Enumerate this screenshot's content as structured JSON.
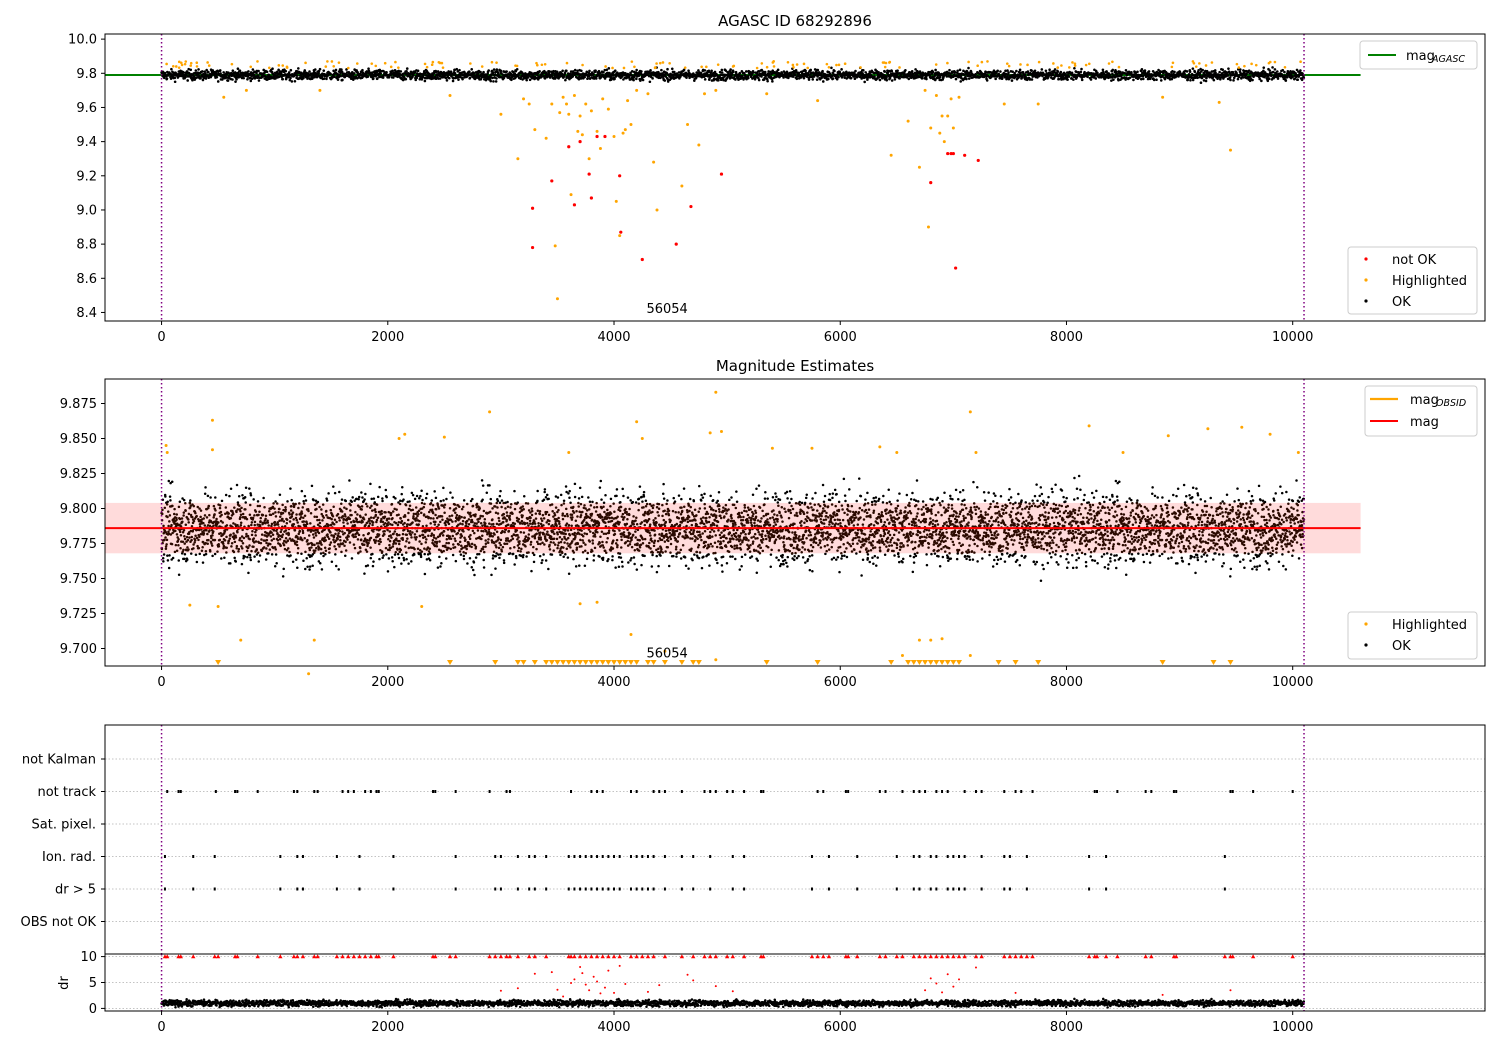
{
  "chart_data": [
    {
      "type": "scatter",
      "title": "AGASC ID 68292896",
      "xlim": [
        -500,
        11700
      ],
      "ylim": [
        8.35,
        10.03
      ],
      "xticks": [
        0,
        2000,
        4000,
        6000,
        8000,
        10000
      ],
      "yticks": [
        8.4,
        8.6,
        8.8,
        9.0,
        9.2,
        9.4,
        9.6,
        9.8,
        10.0
      ],
      "ytick_labels": [
        "8.4",
        "8.6",
        "8.8",
        "9.0",
        "9.2",
        "9.4",
        "9.6",
        "9.8",
        "10.0"
      ],
      "vlines": [
        0,
        10100
      ],
      "annotation": {
        "text": "56054",
        "x": 5000,
        "y": 8.41
      },
      "mag_line": {
        "y": 9.79,
        "x_range": [
          -500,
          10600
        ]
      },
      "ok_band": {
        "center": 9.79,
        "spread": 0.03
      },
      "legend_top": [
        {
          "label": "mag",
          "sub": "AGASC",
          "color": "#008000",
          "kind": "line"
        }
      ],
      "legend_bottom": [
        {
          "label": "not OK",
          "color": "#ff0000",
          "kind": "dot"
        },
        {
          "label": "Highlighted",
          "color": "#ffa500",
          "kind": "dot"
        },
        {
          "label": "OK",
          "color": "#000000",
          "kind": "dot"
        }
      ],
      "highlighted_points": [
        [
          3000,
          9.56
        ],
        [
          3150,
          9.3
        ],
        [
          3200,
          9.65
        ],
        [
          3250,
          9.62
        ],
        [
          3300,
          9.47
        ],
        [
          3400,
          9.42
        ],
        [
          3450,
          9.62
        ],
        [
          3480,
          8.79
        ],
        [
          3500,
          8.48
        ],
        [
          3520,
          9.57
        ],
        [
          3550,
          9.66
        ],
        [
          3580,
          9.62
        ],
        [
          3600,
          9.56
        ],
        [
          3620,
          9.09
        ],
        [
          3650,
          9.67
        ],
        [
          3680,
          9.46
        ],
        [
          3700,
          9.55
        ],
        [
          3720,
          9.44
        ],
        [
          3750,
          9.62
        ],
        [
          3780,
          9.3
        ],
        [
          3800,
          9.58
        ],
        [
          3850,
          9.46
        ],
        [
          3880,
          9.36
        ],
        [
          3900,
          9.65
        ],
        [
          3950,
          9.59
        ],
        [
          4000,
          9.43
        ],
        [
          4020,
          9.05
        ],
        [
          4050,
          8.85
        ],
        [
          4080,
          9.45
        ],
        [
          4100,
          9.47
        ],
        [
          4120,
          9.64
        ],
        [
          4150,
          9.5
        ],
        [
          4200,
          9.7
        ],
        [
          4300,
          9.68
        ],
        [
          4350,
          9.28
        ],
        [
          4380,
          9.0
        ],
        [
          4600,
          9.14
        ],
        [
          4650,
          9.5
        ],
        [
          4750,
          9.38
        ],
        [
          4800,
          9.68
        ],
        [
          5350,
          9.68
        ],
        [
          5800,
          9.64
        ],
        [
          6450,
          9.32
        ],
        [
          6600,
          9.52
        ],
        [
          6700,
          9.25
        ],
        [
          6750,
          9.7
        ],
        [
          6780,
          8.9
        ],
        [
          6800,
          9.48
        ],
        [
          6850,
          9.67
        ],
        [
          6880,
          9.45
        ],
        [
          6900,
          9.55
        ],
        [
          6920,
          9.4
        ],
        [
          6950,
          9.55
        ],
        [
          6980,
          9.65
        ],
        [
          7000,
          9.48
        ],
        [
          7050,
          9.66
        ],
        [
          7450,
          9.62
        ],
        [
          7750,
          9.62
        ],
        [
          8850,
          9.66
        ],
        [
          9350,
          9.63
        ],
        [
          9450,
          9.35
        ],
        [
          2550,
          9.67
        ],
        [
          1400,
          9.7
        ],
        [
          550,
          9.66
        ],
        [
          750,
          9.7
        ],
        [
          4900,
          9.7
        ]
      ],
      "notok_points": [
        [
          3280,
          9.01
        ],
        [
          3280,
          8.78
        ],
        [
          3450,
          9.17
        ],
        [
          3600,
          9.37
        ],
        [
          3650,
          9.03
        ],
        [
          3700,
          9.4
        ],
        [
          3780,
          9.21
        ],
        [
          3800,
          9.07
        ],
        [
          3850,
          9.43
        ],
        [
          3920,
          9.43
        ],
        [
          4050,
          9.2
        ],
        [
          4060,
          8.87
        ],
        [
          4250,
          8.71
        ],
        [
          4550,
          8.8
        ],
        [
          4680,
          9.02
        ],
        [
          4950,
          9.21
        ],
        [
          6950,
          9.33
        ],
        [
          6980,
          9.33
        ],
        [
          7000,
          9.33
        ],
        [
          6800,
          9.16
        ],
        [
          7020,
          8.66
        ],
        [
          7100,
          9.32
        ],
        [
          7220,
          9.29
        ]
      ]
    },
    {
      "type": "scatter",
      "title": "Magnitude Estimates",
      "xlim": [
        -500,
        11700
      ],
      "ylim": [
        9.6875,
        9.8925
      ],
      "xticks": [
        0,
        2000,
        4000,
        6000,
        8000,
        10000
      ],
      "yticks": [
        9.7,
        9.725,
        9.75,
        9.775,
        9.8,
        9.825,
        9.85,
        9.875
      ],
      "ytick_labels": [
        "9.700",
        "9.725",
        "9.750",
        "9.775",
        "9.800",
        "9.825",
        "9.850",
        "9.875"
      ],
      "vlines": [
        0,
        10100
      ],
      "annotation": {
        "text": "56054",
        "x": 5000,
        "y": 9.695
      },
      "mag_line": {
        "y": 9.786,
        "x_range": [
          -500,
          10600
        ]
      },
      "obsid_band": {
        "low": 9.768,
        "high": 9.804,
        "x_range": [
          -500,
          10600
        ]
      },
      "ok_band": {
        "center": 9.786,
        "spread": 0.025
      },
      "legend_top": [
        {
          "label": "mag",
          "sub": "OBSID",
          "color": "#ffa500",
          "kind": "line"
        },
        {
          "label": "mag",
          "sub": "",
          "color": "#ff0000",
          "kind": "line"
        }
      ],
      "legend_bottom": [
        {
          "label": "Highlighted",
          "color": "#ffa500",
          "kind": "dot"
        },
        {
          "label": "OK",
          "color": "#000000",
          "kind": "dot"
        }
      ],
      "highlighted_points": [
        [
          40,
          9.845
        ],
        [
          50,
          9.84
        ],
        [
          450,
          9.863
        ],
        [
          450,
          9.842
        ],
        [
          500,
          9.73
        ],
        [
          700,
          9.706
        ],
        [
          1350,
          9.706
        ],
        [
          1300,
          9.682
        ],
        [
          250,
          9.731
        ],
        [
          2100,
          9.85
        ],
        [
          2150,
          9.853
        ],
        [
          2300,
          9.73
        ],
        [
          2500,
          9.851
        ],
        [
          2900,
          9.869
        ],
        [
          3600,
          9.84
        ],
        [
          3700,
          9.732
        ],
        [
          3850,
          9.733
        ],
        [
          4200,
          9.862
        ],
        [
          4250,
          9.85
        ],
        [
          4150,
          9.71
        ],
        [
          4450,
          9.698
        ],
        [
          4900,
          9.883
        ],
        [
          4950,
          9.855
        ],
        [
          4850,
          9.854
        ],
        [
          4900,
          9.692
        ],
        [
          5400,
          9.843
        ],
        [
          5750,
          9.843
        ],
        [
          6350,
          9.844
        ],
        [
          6500,
          9.84
        ],
        [
          6550,
          9.695
        ],
        [
          6700,
          9.706
        ],
        [
          6800,
          9.706
        ],
        [
          6900,
          9.707
        ],
        [
          7150,
          9.695
        ],
        [
          7150,
          9.869
        ],
        [
          7200,
          9.84
        ],
        [
          8200,
          9.859
        ],
        [
          8500,
          9.84
        ],
        [
          8900,
          9.852
        ],
        [
          9250,
          9.857
        ],
        [
          9550,
          9.858
        ],
        [
          9800,
          9.853
        ],
        [
          10050,
          9.84
        ]
      ],
      "triangle_x": [
        500,
        2550,
        2950,
        3150,
        3200,
        3300,
        3400,
        3450,
        3500,
        3550,
        3600,
        3650,
        3700,
        3750,
        3800,
        3850,
        3900,
        3950,
        4000,
        4050,
        4100,
        4150,
        4200,
        4300,
        4350,
        4450,
        4600,
        4700,
        4750,
        5350,
        5800,
        6450,
        6600,
        6650,
        6700,
        6750,
        6800,
        6850,
        6900,
        6950,
        7000,
        7050,
        7400,
        7550,
        7750,
        8850,
        9300,
        9450
      ]
    },
    {
      "type": "scatter",
      "title": "",
      "xlim": [
        -500,
        11700
      ],
      "categories": [
        "not Kalman",
        "not track",
        "Sat. pixel.",
        "Ion. rad.",
        "dr > 5",
        "OBS not OK"
      ],
      "vlines": [
        0,
        10100
      ],
      "events": {
        "not track": [
          50,
          150,
          170,
          480,
          650,
          670,
          850,
          1170,
          1200,
          1350,
          1380,
          1600,
          1650,
          1700,
          1800,
          1850,
          1900,
          1920,
          2400,
          2420,
          2600,
          2900,
          3050,
          3080,
          3620,
          3800,
          3850,
          3900,
          4150,
          4200,
          4350,
          4400,
          4450,
          4600,
          4800,
          4850,
          4900,
          5000,
          5050,
          5150,
          5300,
          5320,
          5800,
          5850,
          6050,
          6070,
          6350,
          6400,
          6550,
          6650,
          6700,
          6750,
          6850,
          6900,
          6950,
          7100,
          7200,
          7250,
          7450,
          7550,
          7600,
          7700,
          8250,
          8270,
          8450,
          8700,
          8750,
          8950,
          8970,
          9450,
          9470,
          9650,
          10000
        ],
        "Ion. rad.": [
          30,
          280,
          470,
          1050,
          1200,
          1250,
          1550,
          1750,
          2050,
          2600,
          2950,
          3000,
          3150,
          3250,
          3300,
          3400,
          3600,
          3650,
          3700,
          3750,
          3800,
          3850,
          3900,
          3950,
          4000,
          4050,
          4150,
          4200,
          4250,
          4300,
          4350,
          4450,
          4600,
          4700,
          4850,
          5050,
          5150,
          5750,
          5900,
          6150,
          6500,
          6650,
          6700,
          6800,
          6850,
          6950,
          7000,
          7050,
          7100,
          7250,
          7450,
          7500,
          7650,
          8200,
          8350,
          9400
        ],
        "dr > 5": [
          30,
          280,
          470,
          1050,
          1200,
          1250,
          1550,
          1750,
          2050,
          2600,
          2950,
          3000,
          3150,
          3250,
          3300,
          3400,
          3600,
          3650,
          3700,
          3750,
          3800,
          3850,
          3900,
          3950,
          4000,
          4050,
          4150,
          4200,
          4250,
          4300,
          4350,
          4450,
          4600,
          4700,
          4850,
          5050,
          5150,
          5750,
          5900,
          6150,
          6500,
          6650,
          6700,
          6800,
          6850,
          6950,
          7000,
          7050,
          7100,
          7250,
          7450,
          7500,
          7650,
          8200,
          8350,
          9400
        ]
      }
    },
    {
      "type": "scatter",
      "title": "",
      "xlim": [
        -500,
        11700
      ],
      "ylim": [
        -0.5,
        10.5
      ],
      "ylabel": "dr",
      "xticks": [
        0,
        2000,
        4000,
        6000,
        8000,
        10000
      ],
      "yticks": [
        0,
        5,
        10
      ],
      "ytick_labels": [
        "0",
        "5",
        "10"
      ],
      "vlines": [
        0,
        10100
      ],
      "ok_band": {
        "center": 1.0,
        "spread": 0.6
      },
      "capped_x": [
        30,
        50,
        150,
        170,
        280,
        470,
        500,
        650,
        670,
        850,
        1050,
        1170,
        1200,
        1250,
        1350,
        1380,
        1550,
        1600,
        1650,
        1700,
        1750,
        1800,
        1850,
        1900,
        1920,
        2050,
        2400,
        2420,
        2550,
        2600,
        2900,
        2950,
        3000,
        3050,
        3080,
        3150,
        3250,
        3300,
        3400,
        3600,
        3620,
        3650,
        3700,
        3750,
        3800,
        3850,
        3900,
        3950,
        4000,
        4050,
        4150,
        4200,
        4250,
        4300,
        4350,
        4450,
        4600,
        4700,
        4800,
        4850,
        4900,
        5000,
        5050,
        5150,
        5300,
        5320,
        5750,
        5800,
        5850,
        5900,
        6050,
        6070,
        6150,
        6350,
        6400,
        6500,
        6550,
        6650,
        6700,
        6750,
        6800,
        6850,
        6900,
        6950,
        7000,
        7050,
        7100,
        7200,
        7250,
        7450,
        7500,
        7550,
        7600,
        7650,
        7700,
        8200,
        8250,
        8270,
        8350,
        8450,
        8700,
        8750,
        8950,
        8970,
        9400,
        9450,
        9470,
        9650,
        10000
      ],
      "mid_points": [
        [
          3000,
          3.4
        ],
        [
          3150,
          3.9
        ],
        [
          3300,
          6.7
        ],
        [
          3450,
          7.0
        ],
        [
          3500,
          3.6
        ],
        [
          3550,
          2.3
        ],
        [
          3620,
          4.9
        ],
        [
          3650,
          5.6
        ],
        [
          3700,
          8.0
        ],
        [
          3720,
          6.8
        ],
        [
          3750,
          4.6
        ],
        [
          3780,
          3.5
        ],
        [
          3820,
          6.1
        ],
        [
          3850,
          5.2
        ],
        [
          3880,
          2.9
        ],
        [
          3920,
          4.0
        ],
        [
          3950,
          7.3
        ],
        [
          4000,
          3.0
        ],
        [
          4050,
          8.2
        ],
        [
          4100,
          4.7
        ],
        [
          4300,
          3.2
        ],
        [
          4400,
          4.5
        ],
        [
          4650,
          6.5
        ],
        [
          4700,
          5.4
        ],
        [
          4900,
          4.3
        ],
        [
          5050,
          3.3
        ],
        [
          6750,
          3.5
        ],
        [
          6800,
          5.8
        ],
        [
          6850,
          4.8
        ],
        [
          6900,
          3.1
        ],
        [
          6950,
          6.6
        ],
        [
          7000,
          4.2
        ],
        [
          7050,
          5.6
        ],
        [
          7200,
          7.9
        ],
        [
          7550,
          3.0
        ],
        [
          8850,
          2.6
        ],
        [
          9450,
          3.5
        ]
      ]
    }
  ],
  "caption": "56054"
}
